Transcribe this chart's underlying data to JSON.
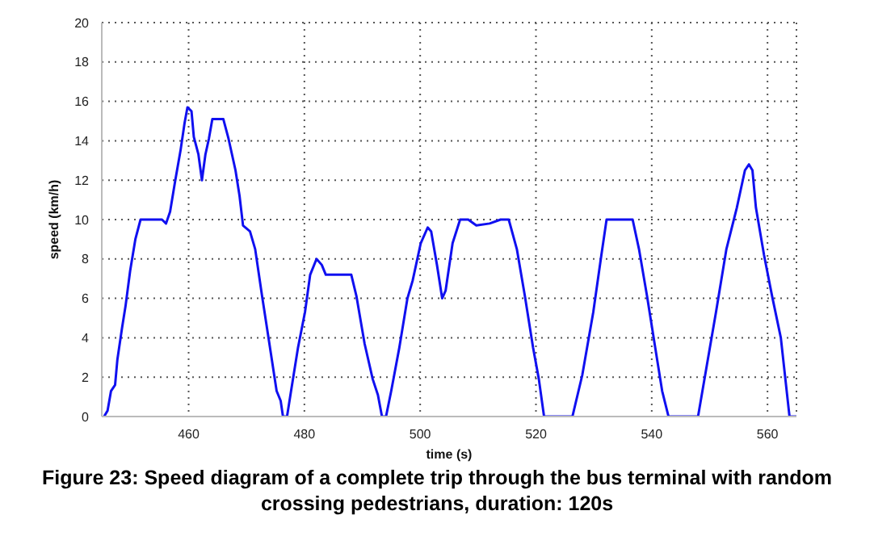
{
  "chart_data": {
    "type": "line",
    "title": "Figure 23: Speed diagram of a complete trip through the bus terminal with random crossing pedestrians, duration: 120s",
    "xlabel": "time (s)",
    "ylabel": "speed (km/h)",
    "xlim": [
      445,
      565
    ],
    "xticks": [
      460,
      480,
      500,
      520,
      540,
      560
    ],
    "ylim": [
      0,
      20
    ],
    "yticks": [
      0,
      2,
      4,
      6,
      8,
      10,
      12,
      14,
      16,
      18,
      20
    ],
    "grid": true,
    "line_style": "solid",
    "marker": "none",
    "series": [
      {
        "color": "#1010f0",
        "x": [
          445.4,
          446,
          446.6,
          447.3,
          447.7,
          448.5,
          449.1,
          449.9,
          450.8,
          451.7,
          455.4,
          456.1,
          456.8,
          457.7,
          458.6,
          459.3,
          459.8,
          460.5,
          460.9,
          461.7,
          462.3,
          462.9,
          463.5,
          464.1,
          466,
          466.9,
          468.1,
          468.8,
          469.4,
          470.6,
          471.5,
          472.7,
          473.8,
          475.2,
          475.9,
          476.3,
          477,
          477.7,
          478.9,
          480.1,
          481,
          482.1,
          483,
          483.7,
          488.1,
          489,
          490.4,
          491.8,
          492.7,
          493.4,
          494.1,
          495,
          496.4,
          497.8,
          498.7,
          500.1,
          501.3,
          501.9,
          502.9,
          503.8,
          504.4,
          505.6,
          506.9,
          508.3,
          509.7,
          512,
          513.9,
          515.3,
          516.7,
          518.1,
          519.5,
          520.5,
          521.4,
          526.3,
          528,
          529.9,
          531.3,
          532.2,
          536.7,
          537.8,
          539.2,
          540.6,
          541.8,
          542.9,
          548,
          549.4,
          551.1,
          552.9,
          554.7,
          556.1,
          556.8,
          557.4,
          558,
          559.4,
          560.8,
          562.3,
          563.8,
          565
        ],
        "values": [
          0,
          0.3,
          1.3,
          1.6,
          2.9,
          4.5,
          5.6,
          7.4,
          9,
          10,
          10,
          9.8,
          10.4,
          12,
          13.5,
          14.9,
          15.7,
          15.5,
          14.2,
          13.3,
          12,
          13.3,
          14.1,
          15.1,
          15.1,
          14.1,
          12.5,
          11.2,
          9.7,
          9.4,
          8.5,
          6.1,
          4,
          1.3,
          0.8,
          0,
          0,
          1.3,
          3.5,
          5.3,
          7.2,
          8,
          7.7,
          7.2,
          7.2,
          6.1,
          3.7,
          1.9,
          1.1,
          0,
          0,
          1.3,
          3.5,
          6,
          6.9,
          8.8,
          9.6,
          9.4,
          7.7,
          6,
          6.4,
          8.8,
          10,
          10,
          9.7,
          9.8,
          10,
          10,
          8.5,
          6.1,
          3.5,
          1.9,
          0,
          0,
          2.1,
          5.3,
          8.2,
          10,
          10,
          8.5,
          6.1,
          3.5,
          1.3,
          0,
          0,
          2.4,
          5.3,
          8.5,
          10.6,
          12.5,
          12.8,
          12.5,
          10.6,
          8.2,
          6.1,
          4,
          0,
          0
        ]
      }
    ]
  }
}
